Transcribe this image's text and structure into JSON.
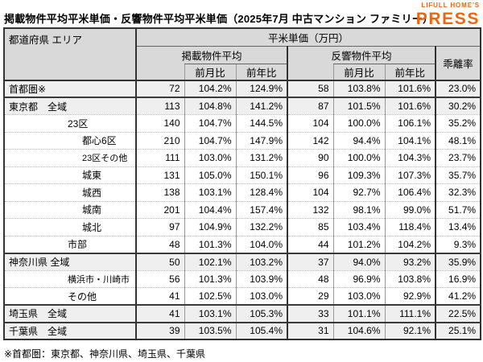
{
  "page": {
    "title": "掲載物件平均平米単価・反響物件平均平米単価（2025年7月 中古マンション ファミリー）",
    "logo": {
      "line1": "LIFULL HOME'S",
      "line2": "PRESS"
    },
    "footnote": "※首都圏：東京都、神奈川県、埼玉県、千葉県"
  },
  "header": {
    "area": "都道府県 エリア",
    "unit_group": "平米単価（万円）",
    "listed_group": "掲載物件平均",
    "response_group": "反響物件平均",
    "divergence": "乖離率",
    "mom": "前月比",
    "yoy": "前年比"
  },
  "colors": {
    "brand_orange": "#ee6510",
    "header_bg": "#d9d9d9",
    "shaded_row_bg": "#efefef",
    "border_dark": "#333333",
    "border_light": "#999999"
  },
  "chart_data": {
    "type": "table",
    "title": "掲載物件平均平米単価・反響物件平均平米単価（2025年7月 中古マンション ファミリー）",
    "unit": "平米単価（万円）",
    "columns": [
      "都道府県 エリア",
      "掲載物件平均",
      "掲載 前月比",
      "掲載 前年比",
      "反響物件平均",
      "反響 前月比",
      "反響 前年比",
      "乖離率"
    ],
    "footnote": "※首都圏：東京都、神奈川県、埼玉県、千葉県",
    "rows": [
      {
        "area": "首都圏※",
        "indent": 0,
        "shaded": true,
        "major": true,
        "small": false,
        "values": [
          "72",
          "104.2%",
          "124.9%",
          "58",
          "103.8%",
          "101.6%",
          "23.0%"
        ]
      },
      {
        "area": "東京都　全域",
        "indent": 0,
        "shaded": true,
        "major": true,
        "small": false,
        "values": [
          "113",
          "104.8%",
          "141.2%",
          "87",
          "101.5%",
          "101.6%",
          "30.2%"
        ]
      },
      {
        "area": "23区",
        "indent": 1,
        "shaded": false,
        "major": false,
        "small": false,
        "values": [
          "140",
          "104.7%",
          "144.5%",
          "104",
          "100.0%",
          "106.1%",
          "35.2%"
        ]
      },
      {
        "area": "都心6区",
        "indent": 2,
        "shaded": false,
        "major": false,
        "small": false,
        "values": [
          "210",
          "104.7%",
          "147.9%",
          "142",
          "94.4%",
          "104.1%",
          "48.1%"
        ]
      },
      {
        "area": "23区その他",
        "indent": 2,
        "shaded": false,
        "major": false,
        "small": true,
        "values": [
          "111",
          "103.0%",
          "131.2%",
          "90",
          "100.0%",
          "104.3%",
          "23.7%"
        ]
      },
      {
        "area": "城東",
        "indent": 2,
        "shaded": false,
        "major": false,
        "small": false,
        "values": [
          "131",
          "105.0%",
          "150.1%",
          "96",
          "109.3%",
          "107.3%",
          "35.7%"
        ]
      },
      {
        "area": "城西",
        "indent": 2,
        "shaded": false,
        "major": false,
        "small": false,
        "values": [
          "138",
          "103.1%",
          "128.4%",
          "104",
          "92.7%",
          "106.4%",
          "32.3%"
        ]
      },
      {
        "area": "城南",
        "indent": 2,
        "shaded": false,
        "major": false,
        "small": false,
        "values": [
          "201",
          "104.4%",
          "157.4%",
          "132",
          "98.1%",
          "99.0%",
          "51.7%"
        ]
      },
      {
        "area": "城北",
        "indent": 2,
        "shaded": false,
        "major": false,
        "small": false,
        "values": [
          "97",
          "104.9%",
          "132.2%",
          "85",
          "103.4%",
          "118.4%",
          "13.4%"
        ]
      },
      {
        "area": "市部",
        "indent": 1,
        "shaded": false,
        "major": false,
        "small": false,
        "values": [
          "48",
          "101.3%",
          "104.0%",
          "44",
          "101.2%",
          "104.2%",
          "9.3%"
        ]
      },
      {
        "area": "神奈川県 全域",
        "indent": 0,
        "shaded": true,
        "major": true,
        "small": false,
        "values": [
          "50",
          "102.1%",
          "103.2%",
          "37",
          "94.0%",
          "93.2%",
          "35.9%"
        ]
      },
      {
        "area": "横浜市・川崎市",
        "indent": 1,
        "shaded": false,
        "major": false,
        "small": true,
        "values": [
          "56",
          "101.3%",
          "103.9%",
          "48",
          "96.9%",
          "103.8%",
          "16.9%"
        ]
      },
      {
        "area": "その他",
        "indent": 1,
        "shaded": false,
        "major": false,
        "small": false,
        "values": [
          "41",
          "102.5%",
          "103.0%",
          "29",
          "103.0%",
          "92.9%",
          "41.2%"
        ]
      },
      {
        "area": "埼玉県　全域",
        "indent": 0,
        "shaded": true,
        "major": true,
        "small": false,
        "values": [
          "41",
          "103.1%",
          "105.3%",
          "33",
          "101.1%",
          "111.1%",
          "22.5%"
        ]
      },
      {
        "area": "千葉県　全域",
        "indent": 0,
        "shaded": true,
        "major": true,
        "small": false,
        "values": [
          "39",
          "103.5%",
          "105.4%",
          "31",
          "104.6%",
          "92.1%",
          "25.1%"
        ]
      }
    ]
  }
}
